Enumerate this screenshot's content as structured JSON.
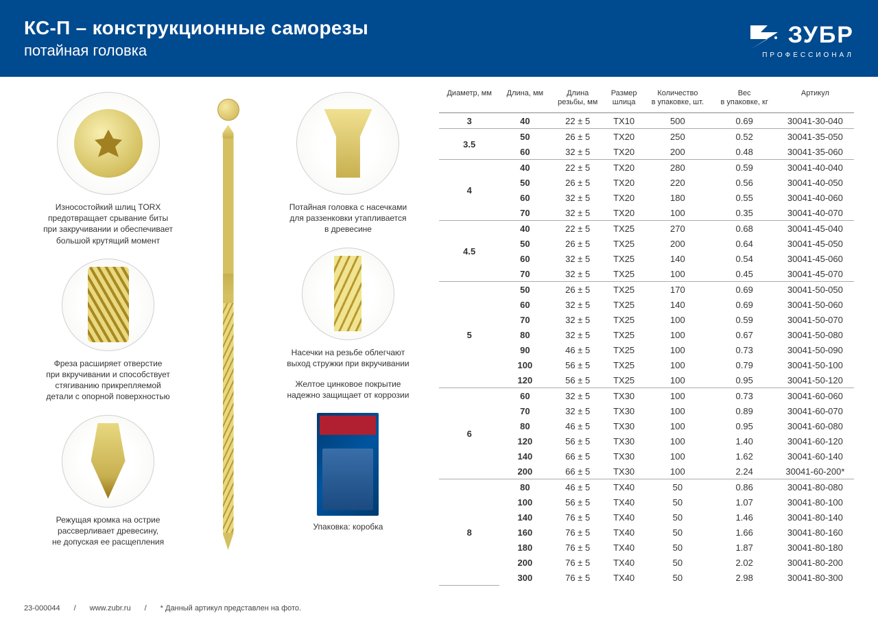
{
  "header": {
    "title": "КС-П – конструкционные саморезы",
    "subtitle": "потайная головка",
    "brand_name": "ЗУБР",
    "brand_sub": "ПРОФЕССИОНАЛ"
  },
  "features_left": [
    {
      "caption": "Износостойкий шлиц TORX\nпредотвращает срывание биты\nпри закручивании и обеспечивает\nбольшой крутящий момент"
    },
    {
      "caption": "Фреза расширяет отверстие\nпри вкручивании и способствует\nстягиванию прикрепляемой\nдетали с опорной поверхностью"
    },
    {
      "caption": "Режущая кромка на острие\nрассверливает древесину,\nне допуская ее расщепления"
    }
  ],
  "features_right": [
    {
      "caption": "Потайная головка с насечками\nдля раззенковки утапливается\nв древесине"
    },
    {
      "caption": "Насечки на резьбе облегчают\nвыход стружки при вкручивании"
    },
    {
      "caption_extra": "Желтое цинковое покрытие\nнадежно защищает от коррозии"
    },
    {
      "caption": "Упаковка: коробка"
    }
  ],
  "table": {
    "columns": [
      "Диаметр, мм",
      "Длина, мм",
      "Длина\nрезьбы, мм",
      "Размер\nшлица",
      "Количество\nв упаковке, шт.",
      "Вес\nв упаковке, кг",
      "Артикул"
    ],
    "groups": [
      {
        "diameter": "3",
        "rows": [
          {
            "len": "40",
            "thread": "22 ± 5",
            "slot": "TX10",
            "qty": "500",
            "wt": "0.69",
            "sku": "30041-30-040"
          }
        ]
      },
      {
        "diameter": "3.5",
        "rows": [
          {
            "len": "50",
            "thread": "26 ± 5",
            "slot": "TX20",
            "qty": "250",
            "wt": "0.52",
            "sku": "30041-35-050"
          },
          {
            "len": "60",
            "thread": "32 ± 5",
            "slot": "TX20",
            "qty": "200",
            "wt": "0.48",
            "sku": "30041-35-060"
          }
        ]
      },
      {
        "diameter": "4",
        "rows": [
          {
            "len": "40",
            "thread": "22 ± 5",
            "slot": "TX20",
            "qty": "280",
            "wt": "0.59",
            "sku": "30041-40-040"
          },
          {
            "len": "50",
            "thread": "26 ± 5",
            "slot": "TX20",
            "qty": "220",
            "wt": "0.56",
            "sku": "30041-40-050"
          },
          {
            "len": "60",
            "thread": "32 ± 5",
            "slot": "TX20",
            "qty": "180",
            "wt": "0.55",
            "sku": "30041-40-060"
          },
          {
            "len": "70",
            "thread": "32 ± 5",
            "slot": "TX20",
            "qty": "100",
            "wt": "0.35",
            "sku": "30041-40-070"
          }
        ]
      },
      {
        "diameter": "4.5",
        "rows": [
          {
            "len": "40",
            "thread": "22 ± 5",
            "slot": "TX25",
            "qty": "270",
            "wt": "0.68",
            "sku": "30041-45-040"
          },
          {
            "len": "50",
            "thread": "26 ± 5",
            "slot": "TX25",
            "qty": "200",
            "wt": "0.64",
            "sku": "30041-45-050"
          },
          {
            "len": "60",
            "thread": "32 ± 5",
            "slot": "TX25",
            "qty": "140",
            "wt": "0.54",
            "sku": "30041-45-060"
          },
          {
            "len": "70",
            "thread": "32 ± 5",
            "slot": "TX25",
            "qty": "100",
            "wt": "0.45",
            "sku": "30041-45-070"
          }
        ]
      },
      {
        "diameter": "5",
        "rows": [
          {
            "len": "50",
            "thread": "26 ± 5",
            "slot": "TX25",
            "qty": "170",
            "wt": "0.69",
            "sku": "30041-50-050"
          },
          {
            "len": "60",
            "thread": "32 ± 5",
            "slot": "TX25",
            "qty": "140",
            "wt": "0.69",
            "sku": "30041-50-060"
          },
          {
            "len": "70",
            "thread": "32 ± 5",
            "slot": "TX25",
            "qty": "100",
            "wt": "0.59",
            "sku": "30041-50-070"
          },
          {
            "len": "80",
            "thread": "32 ± 5",
            "slot": "TX25",
            "qty": "100",
            "wt": "0.67",
            "sku": "30041-50-080"
          },
          {
            "len": "90",
            "thread": "46 ± 5",
            "slot": "TX25",
            "qty": "100",
            "wt": "0.73",
            "sku": "30041-50-090"
          },
          {
            "len": "100",
            "thread": "56 ± 5",
            "slot": "TX25",
            "qty": "100",
            "wt": "0.79",
            "sku": "30041-50-100"
          },
          {
            "len": "120",
            "thread": "56 ± 5",
            "slot": "TX25",
            "qty": "100",
            "wt": "0.95",
            "sku": "30041-50-120"
          }
        ]
      },
      {
        "diameter": "6",
        "rows": [
          {
            "len": "60",
            "thread": "32 ± 5",
            "slot": "TX30",
            "qty": "100",
            "wt": "0.73",
            "sku": "30041-60-060"
          },
          {
            "len": "70",
            "thread": "32 ± 5",
            "slot": "TX30",
            "qty": "100",
            "wt": "0.89",
            "sku": "30041-60-070"
          },
          {
            "len": "80",
            "thread": "46 ± 5",
            "slot": "TX30",
            "qty": "100",
            "wt": "0.95",
            "sku": "30041-60-080"
          },
          {
            "len": "120",
            "thread": "56 ± 5",
            "slot": "TX30",
            "qty": "100",
            "wt": "1.40",
            "sku": "30041-60-120"
          },
          {
            "len": "140",
            "thread": "66 ± 5",
            "slot": "TX30",
            "qty": "100",
            "wt": "1.62",
            "sku": "30041-60-140"
          },
          {
            "len": "200",
            "thread": "66 ± 5",
            "slot": "TX30",
            "qty": "100",
            "wt": "2.24",
            "sku": "30041-60-200*"
          }
        ]
      },
      {
        "diameter": "8",
        "rows": [
          {
            "len": "80",
            "thread": "46 ± 5",
            "slot": "TX40",
            "qty": "50",
            "wt": "0.86",
            "sku": "30041-80-080"
          },
          {
            "len": "100",
            "thread": "56 ± 5",
            "slot": "TX40",
            "qty": "50",
            "wt": "1.07",
            "sku": "30041-80-100"
          },
          {
            "len": "140",
            "thread": "76 ± 5",
            "slot": "TX40",
            "qty": "50",
            "wt": "1.46",
            "sku": "30041-80-140"
          },
          {
            "len": "160",
            "thread": "76 ± 5",
            "slot": "TX40",
            "qty": "50",
            "wt": "1.66",
            "sku": "30041-80-160"
          },
          {
            "len": "180",
            "thread": "76 ± 5",
            "slot": "TX40",
            "qty": "50",
            "wt": "1.87",
            "sku": "30041-80-180"
          },
          {
            "len": "200",
            "thread": "76 ± 5",
            "slot": "TX40",
            "qty": "50",
            "wt": "2.02",
            "sku": "30041-80-200"
          },
          {
            "len": "300",
            "thread": "76 ± 5",
            "slot": "TX40",
            "qty": "50",
            "wt": "2.98",
            "sku": "30041-80-300"
          }
        ]
      }
    ]
  },
  "footer": {
    "code": "23-000044",
    "url": "www.zubr.ru",
    "note": "* Данный артикул представлен на фото."
  },
  "colors": {
    "header_bg": "#004a8f",
    "brass": "#d4c060",
    "text": "#333333",
    "border": "#aaaaaa"
  }
}
